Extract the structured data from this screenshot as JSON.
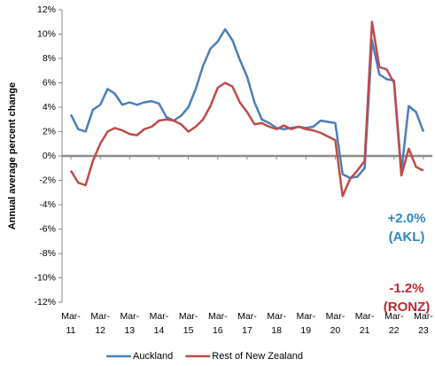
{
  "chart_data": {
    "type": "line",
    "y_label": "Annual average percent change",
    "categories": [
      "Mar-11",
      null,
      null,
      null,
      "Mar-12",
      null,
      null,
      null,
      "Mar-13",
      null,
      null,
      null,
      "Mar-14",
      null,
      null,
      null,
      "Mar-15",
      null,
      null,
      null,
      "Mar-16",
      null,
      null,
      null,
      "Mar-17",
      null,
      null,
      null,
      "Mar-18",
      null,
      null,
      null,
      "Mar-19",
      null,
      null,
      null,
      "Mar-20",
      null,
      null,
      null,
      "Mar-21",
      null,
      null,
      null,
      "Mar-22",
      null,
      null,
      null,
      "Mar-23"
    ],
    "series": [
      {
        "name": "Auckland",
        "color": "#4a7ebb",
        "values": [
          3.4,
          2.2,
          2.0,
          3.8,
          4.2,
          5.5,
          5.1,
          4.2,
          4.4,
          4.2,
          4.4,
          4.5,
          4.3,
          3.2,
          2.9,
          3.3,
          4.0,
          5.5,
          7.4,
          8.8,
          9.4,
          10.4,
          9.5,
          7.9,
          6.5,
          4.4,
          3.0,
          2.7,
          2.3,
          2.2,
          2.3,
          2.4,
          2.3,
          2.4,
          2.9,
          2.8,
          2.7,
          -1.5,
          -1.8,
          -1.7,
          -1.0,
          9.5,
          6.7,
          6.3,
          6.2,
          -1.3,
          4.1,
          3.6,
          2.0
        ]
      },
      {
        "name": "Rest of New Zealand",
        "color": "#be4b48",
        "values": [
          -1.2,
          -2.2,
          -2.4,
          -0.4,
          1.0,
          2.0,
          2.3,
          2.1,
          1.8,
          1.7,
          2.2,
          2.4,
          2.9,
          3.0,
          2.9,
          2.6,
          2.0,
          2.4,
          3.0,
          4.1,
          5.6,
          6.0,
          5.7,
          4.4,
          3.6,
          2.6,
          2.7,
          2.4,
          2.2,
          2.5,
          2.2,
          2.4,
          2.2,
          2.1,
          1.9,
          1.6,
          1.3,
          -3.3,
          -1.9,
          -1.2,
          -0.4,
          11.0,
          7.3,
          7.1,
          6.0,
          -1.6,
          0.6,
          -0.9,
          -1.2
        ]
      }
    ],
    "ylim": [
      -12,
      12
    ],
    "yticks": [
      {
        "value": -12,
        "label": "-12%"
      },
      {
        "value": -10,
        "label": "-10%"
      },
      {
        "value": -8,
        "label": "-8%"
      },
      {
        "value": -6,
        "label": "-6%"
      },
      {
        "value": -4,
        "label": "-4%"
      },
      {
        "value": -2,
        "label": "-2%"
      },
      {
        "value": 0,
        "label": "0%"
      },
      {
        "value": 2,
        "label": "2%"
      },
      {
        "value": 4,
        "label": "4%"
      },
      {
        "value": 6,
        "label": "6%"
      },
      {
        "value": 8,
        "label": "8%"
      },
      {
        "value": 10,
        "label": "10%"
      },
      {
        "value": 12,
        "label": "12%"
      }
    ],
    "annotations": [
      {
        "lines": [
          "+2.0%",
          "(AKL)"
        ],
        "color": "#2e86c1"
      },
      {
        "lines": [
          "-1.2%",
          "(RONZ)"
        ],
        "color": "#c0282d"
      }
    ],
    "legend": "bottom"
  }
}
